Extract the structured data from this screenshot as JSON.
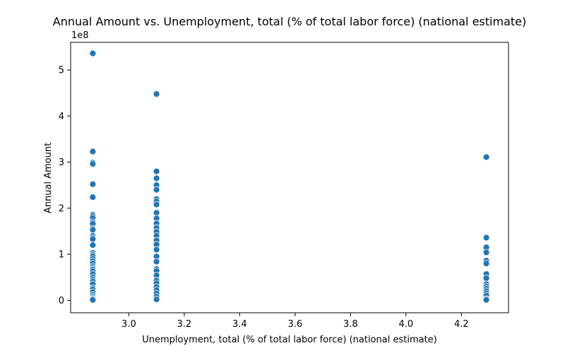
{
  "chart_data": {
    "type": "scatter",
    "title": "Annual Amount vs. Unemployment, total (% of total labor force) (national estimate)",
    "xlabel": "Unemployment, total (% of total labor force) (national estimate)",
    "ylabel": "Annual Amount",
    "y_offset_label": "1e8",
    "xlim": [
      2.79,
      4.37
    ],
    "ylim": [
      -0.27,
      5.6
    ],
    "xticks": [
      3.0,
      3.2,
      3.4,
      3.6,
      3.8,
      4.0,
      4.2
    ],
    "xtick_labels": [
      "3.0",
      "3.2",
      "3.4",
      "3.6",
      "3.8",
      "4.0",
      "4.2"
    ],
    "yticks": [
      0,
      1,
      2,
      3,
      4,
      5
    ],
    "ytick_labels": [
      "0",
      "1",
      "2",
      "3",
      "4",
      "5"
    ],
    "y_unit_scale": 100000000,
    "grid": false,
    "marker_color": "#1f77b4",
    "marker_edge": "#ffffff",
    "series": [
      {
        "x_value": 2.87,
        "y": [
          5.36,
          3.23,
          2.99,
          2.96,
          2.52,
          2.24,
          1.86,
          1.83,
          1.79,
          1.7,
          1.66,
          1.56,
          1.53,
          1.4,
          1.36,
          1.33,
          1.2,
          1.03,
          0.99,
          0.96,
          0.9,
          0.85,
          0.8,
          0.74,
          0.7,
          0.67,
          0.63,
          0.57,
          0.5,
          0.45,
          0.41,
          0.35,
          0.27,
          0.24,
          0.18,
          0.12,
          0.08,
          0.05,
          0.03,
          0.01
        ]
      },
      {
        "x_value": 3.1,
        "y": [
          4.48,
          2.8,
          2.65,
          2.5,
          2.4,
          2.2,
          2.15,
          2.08,
          1.9,
          1.78,
          1.67,
          1.57,
          1.49,
          1.4,
          1.3,
          1.21,
          1.1,
          0.95,
          0.84,
          0.68,
          0.64,
          0.54,
          0.43,
          0.37,
          0.29,
          0.22,
          0.15,
          0.08,
          0.02
        ]
      },
      {
        "x_value": 4.29,
        "y": [
          3.11,
          1.36,
          1.15,
          1.04,
          0.86,
          0.8,
          0.57,
          0.48,
          0.35,
          0.3,
          0.25,
          0.2,
          0.15,
          0.1,
          0.03,
          0.01
        ]
      }
    ]
  }
}
